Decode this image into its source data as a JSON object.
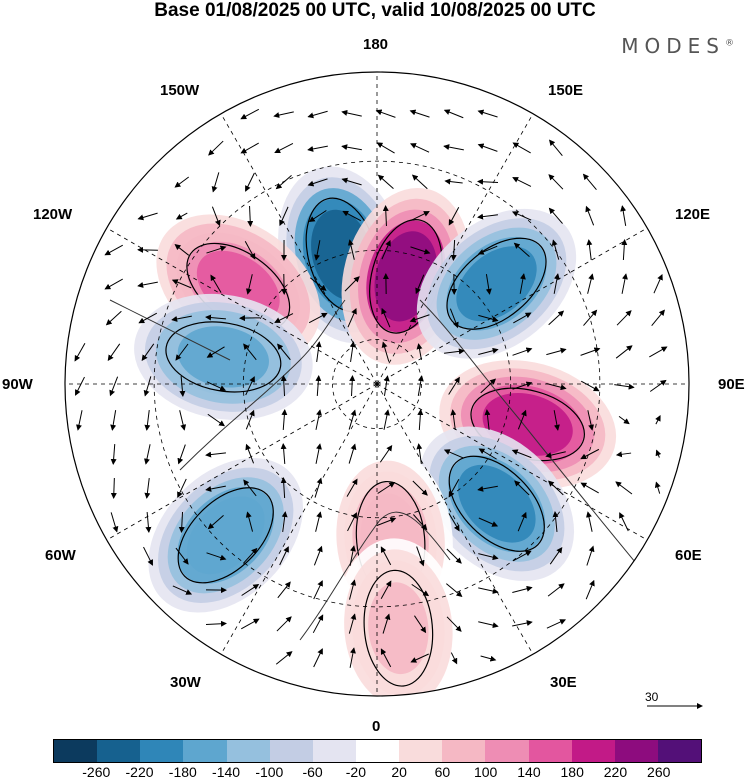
{
  "title": "Base 01/08/2025 00 UTC, valid 10/08/2025 00 UTC",
  "brand": "MODES",
  "brand_mark": "®",
  "longitude_labels": {
    "lon_180": "180",
    "lon_150E": "150E",
    "lon_120E": "120E",
    "lon_90E": "90E",
    "lon_60E": "60E",
    "lon_30E": "30E",
    "lon_0": "0",
    "lon_30W": "30W",
    "lon_60W": "60W",
    "lon_90W": "90W",
    "lon_120W": "120W",
    "lon_150W": "150W"
  },
  "reference_vector": "30",
  "colorbar": {
    "colors": [
      "#0c3a5e",
      "#16618f",
      "#2f86b8",
      "#5ea6cf",
      "#95c0de",
      "#c3cde4",
      "#e4e4f1",
      "#ffffff",
      "#f9dcdc",
      "#f5b8c4",
      "#ee8db4",
      "#e3569f",
      "#c21a87",
      "#8d0c7e",
      "#531078"
    ],
    "ticks": [
      "-260",
      "-220",
      "-180",
      "-140",
      "-100",
      "-60",
      "-20",
      "20",
      "60",
      "100",
      "140",
      "180",
      "220",
      "260"
    ]
  },
  "anomaly_centers": [
    {
      "lat": 60,
      "lon": -165,
      "value": -250
    },
    {
      "lat": 65,
      "lon": 165,
      "value": 230
    },
    {
      "lat": 55,
      "lon": 130,
      "value": -200
    },
    {
      "lat": 52,
      "lon": -125,
      "value": 160
    },
    {
      "lat": 55,
      "lon": -100,
      "value": -170
    },
    {
      "lat": 55,
      "lon": 75,
      "value": 200
    },
    {
      "lat": 52,
      "lon": 45,
      "value": -190
    },
    {
      "lat": 42,
      "lon": -45,
      "value": -180
    },
    {
      "lat": 55,
      "lon": 5,
      "value": 90
    },
    {
      "lat": 35,
      "lon": 5,
      "value": 60
    }
  ]
}
